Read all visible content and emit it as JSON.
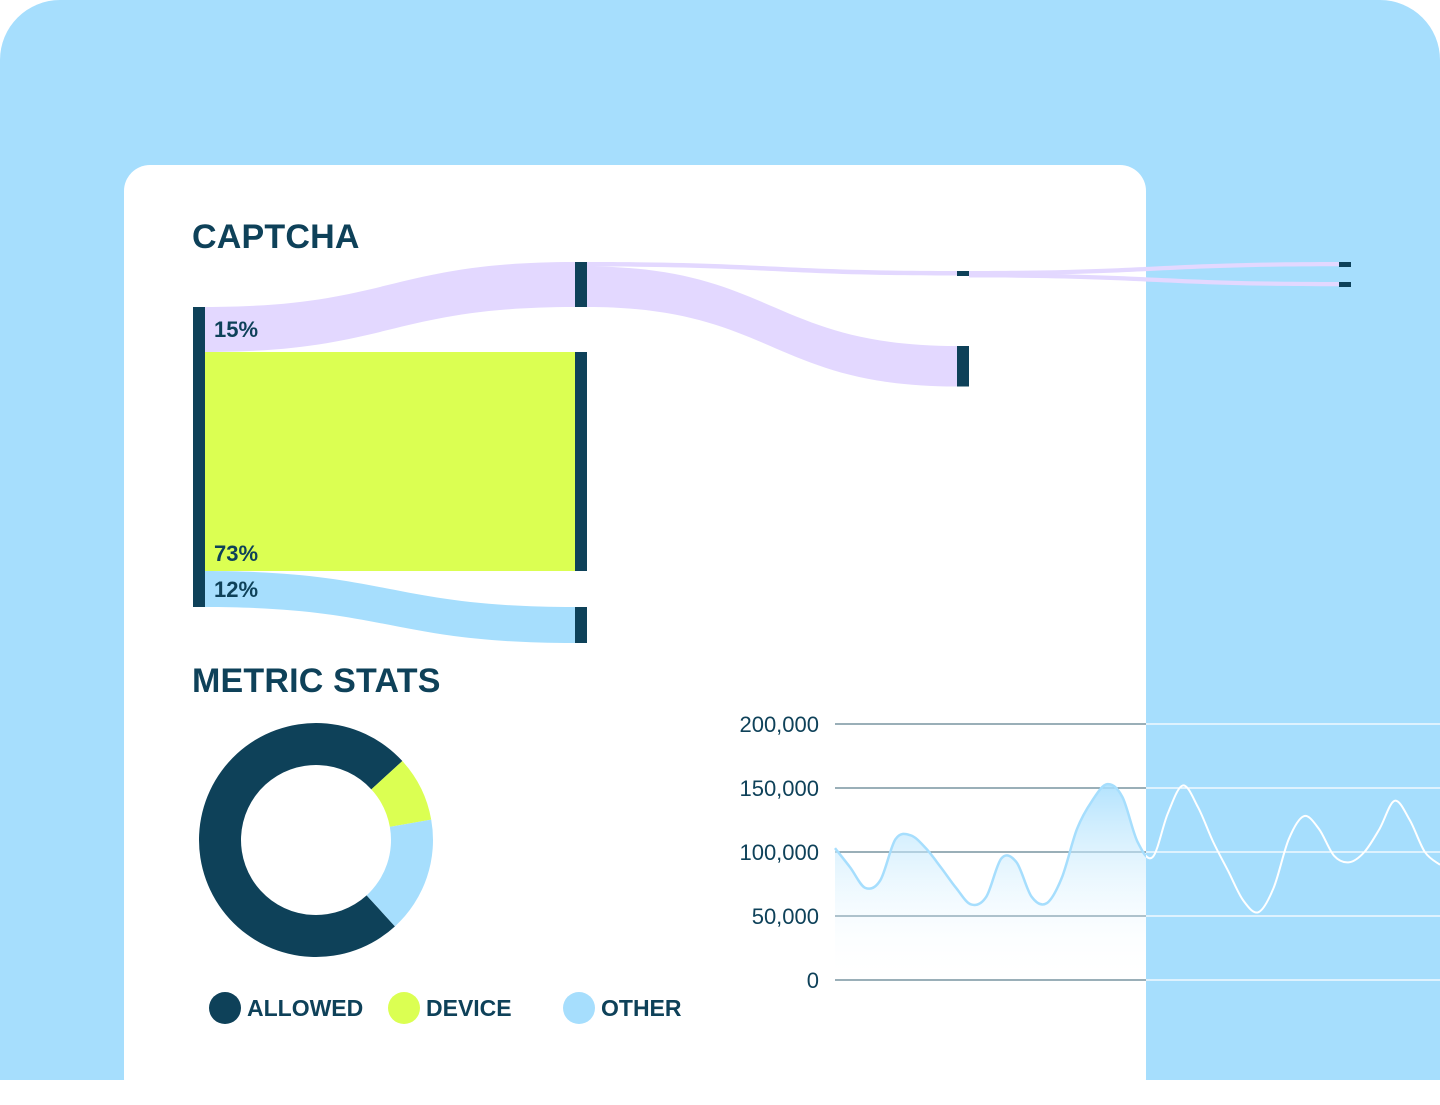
{
  "colors": {
    "background_blue": "#a6defd",
    "dark_navy": "#0e4159",
    "lime": "#dbff52",
    "light_blue": "#a6defd",
    "lavender": "#e3d8ff"
  },
  "sankey": {
    "title": "CAPTCHA",
    "source_node": "CAPTCHA",
    "flows": [
      {
        "label": "15%",
        "value": 15,
        "color": "#e3d8ff"
      },
      {
        "label": "73%",
        "value": 73,
        "color": "#dbff52"
      },
      {
        "label": "12%",
        "value": 12,
        "color": "#a6defd"
      }
    ],
    "second_level_from_15": [
      {
        "value": 1.5,
        "color": "#e3d8ff"
      },
      {
        "value": 13.5,
        "color": "#e3d8ff"
      }
    ],
    "third_level_from_small": [
      {
        "value": 0.75,
        "color": "#e3d8ff"
      },
      {
        "value": 0.75,
        "color": "#e3d8ff"
      }
    ]
  },
  "stats": {
    "title": "METRIC STATS"
  },
  "chart_data": [
    {
      "type": "pie",
      "title": "METRIC STATS",
      "variant": "donut",
      "categories": [
        "ALLOWED",
        "DEVICE",
        "OTHER"
      ],
      "values": [
        75,
        9,
        16
      ],
      "colors": [
        "#0e4159",
        "#dbff52",
        "#a6defd"
      ],
      "legend": [
        {
          "label": "ALLOWED",
          "color": "#0e4159"
        },
        {
          "label": "DEVICE",
          "color": "#dbff52"
        },
        {
          "label": "OTHER",
          "color": "#a6defd"
        }
      ]
    },
    {
      "type": "area",
      "yticks": [
        "200,000",
        "150,000",
        "100,000",
        "50,000",
        "0"
      ],
      "ytick_values": [
        200000,
        150000,
        100000,
        50000,
        0
      ],
      "ylim": [
        0,
        200000
      ],
      "x": [
        0,
        1,
        2,
        3,
        4,
        5,
        6,
        7,
        8,
        9,
        10,
        11,
        12,
        13,
        14,
        15,
        16,
        17,
        18,
        19,
        20,
        21,
        22,
        23,
        24,
        25,
        26,
        27,
        28,
        29,
        30,
        31,
        32,
        33,
        34,
        35,
        36,
        37,
        38,
        39,
        40
      ],
      "y": [
        103000,
        88000,
        72000,
        78000,
        110000,
        113000,
        103000,
        88000,
        72000,
        59000,
        65000,
        95000,
        92000,
        65000,
        60000,
        80000,
        118000,
        140000,
        153000,
        143000,
        108000,
        96000,
        130000,
        152000,
        135000,
        108000,
        85000,
        62000,
        53000,
        72000,
        110000,
        128000,
        118000,
        97000,
        92000,
        100000,
        118000,
        140000,
        125000,
        100000,
        90000
      ]
    }
  ]
}
